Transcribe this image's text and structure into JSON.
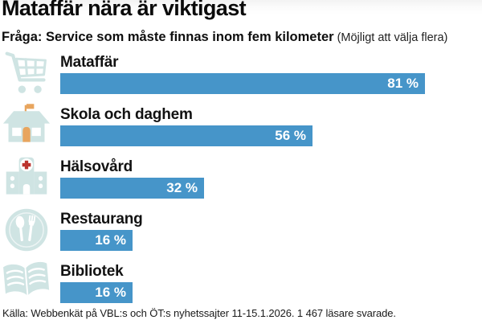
{
  "header": {
    "title": "Mataffär nära är viktigast",
    "question": "Fråga: Service som måste finnas inom fem kilometer",
    "note": "(Möjligt att välja flera)"
  },
  "chart_data": {
    "type": "bar",
    "orientation": "horizontal",
    "title": "Mataffär nära är viktigast",
    "subtitle": "Fråga: Service som måste finnas inom fem kilometer (Möjligt att välja flera)",
    "unit": "%",
    "xlim": [
      0,
      100
    ],
    "grid": false,
    "legend": false,
    "categories": [
      "Mataffär",
      "Skola och daghem",
      "Hälsovård",
      "Restaurang",
      "Bibliotek"
    ],
    "values": [
      81,
      56,
      32,
      16,
      16
    ],
    "value_labels": [
      "81 %",
      "56 %",
      "32 %",
      "16 %",
      "16 %"
    ],
    "icons": [
      "shopping-cart-icon",
      "school-house-icon",
      "hospital-icon",
      "restaurant-plate-icon",
      "open-book-icon"
    ]
  },
  "footer": {
    "source": "Källa: Webbenkät på VBL:s och ÖT:s nyhetssajter 11-15.1.2026. 1 467 läsare svarade."
  },
  "colors": {
    "bar_blue": "#4695c9",
    "icon_teal": "#cfe4e3",
    "accent_orange": "#e8a55e",
    "accent_red": "#bb342e",
    "value_text": "#ffffff",
    "title_text": "#0b0b0b"
  }
}
